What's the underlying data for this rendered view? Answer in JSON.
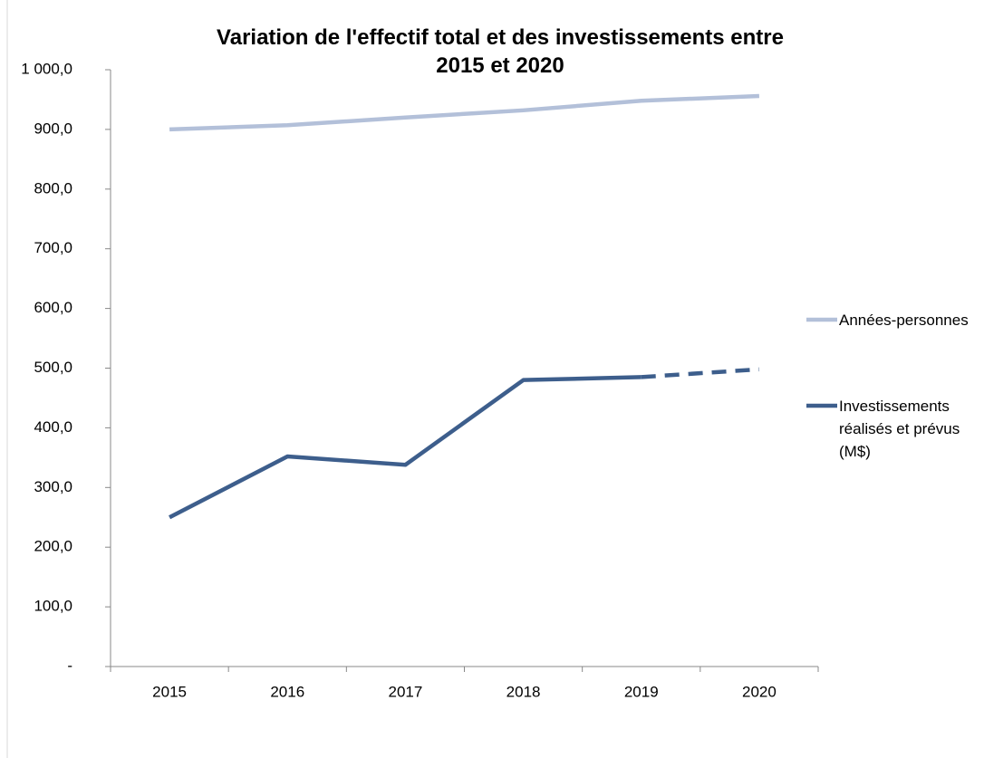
{
  "chart_data": {
    "type": "line",
    "title": "Variation de l'effectif total et des investissements entre 2015 et 2020",
    "categories": [
      "2015",
      "2016",
      "2017",
      "2018",
      "2019",
      "2020"
    ],
    "series": [
      {
        "name": "Années-personnes",
        "color": "#b3c0d9",
        "values": [
          900,
          907,
          920,
          932,
          948,
          956
        ]
      },
      {
        "name": "Investissements réalisés et prévus (M$)",
        "color": "#3d5e8c",
        "values": [
          250,
          352,
          338,
          480,
          485,
          498
        ],
        "dashed_from": 4
      }
    ],
    "ylim": [
      0,
      1000
    ],
    "yticks": [
      {
        "value": 0,
        "label": "-"
      },
      {
        "value": 100,
        "label": "100,0"
      },
      {
        "value": 200,
        "label": "200,0"
      },
      {
        "value": 300,
        "label": "300,0"
      },
      {
        "value": 400,
        "label": "400,0"
      },
      {
        "value": 500,
        "label": "500,0"
      },
      {
        "value": 600,
        "label": "600,0"
      },
      {
        "value": 700,
        "label": "700,0"
      },
      {
        "value": 800,
        "label": "800,0"
      },
      {
        "value": 900,
        "label": "900,0"
      },
      {
        "value": 1000,
        "label": "1 000,0"
      }
    ],
    "grid": false,
    "legend": "right"
  }
}
